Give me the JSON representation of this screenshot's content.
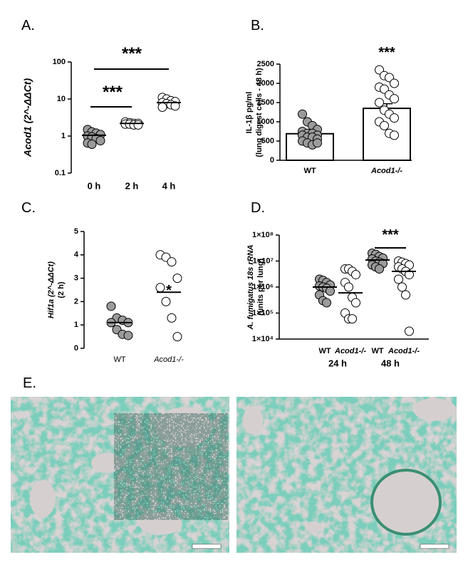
{
  "chart_data": [
    {
      "type": "strip",
      "panel_label": "A.",
      "ylabel": [
        "Acod1 (2^-ΔΔCt)"
      ],
      "log_y": true,
      "ylim": [
        0.1,
        100
      ],
      "yticks": [
        0.1,
        1,
        10,
        100
      ],
      "categories": [
        "0 h",
        "2 h",
        "4 h"
      ],
      "colors": [
        "#9b9b9b",
        "#ffffff",
        "#ffffff"
      ],
      "points": [
        [
          1.5,
          1.3,
          1.2,
          1.1,
          1.0,
          0.95,
          0.85,
          0.75,
          0.65,
          0.6
        ],
        [
          2.4,
          2.3,
          2.2,
          2.2,
          2.1,
          2.1,
          2.0,
          2.0
        ],
        [
          11,
          10,
          9,
          8.5,
          8,
          7.5,
          7,
          6.5,
          6
        ]
      ],
      "values": [
        1.05,
        2.2,
        8
      ],
      "annotations": [
        "***",
        "***"
      ]
    },
    {
      "type": "bar",
      "panel_label": "B.",
      "ylabel": [
        "IL-1β pg/ml",
        "(lung digest cells - 48 h)"
      ],
      "log_y": false,
      "ylim": [
        0,
        2500
      ],
      "yticks": [
        0,
        500,
        1000,
        1500,
        2000,
        2500
      ],
      "categories": [
        "WT",
        "Acod1-/-"
      ],
      "colors": [
        "#9b9b9b",
        "#ffffff"
      ],
      "bar_color": "#ffffff",
      "values": [
        690,
        1350
      ],
      "errors": [
        50,
        120
      ],
      "points": [
        [
          1200,
          1000,
          900,
          800,
          750,
          700,
          700,
          650,
          650,
          600,
          600,
          550,
          500,
          450,
          400,
          450
        ],
        [
          2350,
          2200,
          2150,
          2000,
          1900,
          1850,
          1700,
          1600,
          1500,
          1300,
          1200,
          1100,
          1000,
          900,
          700,
          650
        ]
      ],
      "annotations": [
        "***"
      ]
    },
    {
      "type": "strip",
      "panel_label": "C.",
      "ylabel": [
        "Hif1a (2^-ΔΔCt)",
        "(2 h)"
      ],
      "log_y": false,
      "ylim": [
        0,
        5
      ],
      "yticks": [
        0,
        1,
        2,
        3,
        4,
        5
      ],
      "categories": [
        "WT",
        "Acod1-/-"
      ],
      "colors": [
        "#9b9b9b",
        "#ffffff"
      ],
      "points": [
        [
          1.8,
          1.3,
          1.2,
          1.1,
          1.1,
          0.8,
          0.6,
          0.55
        ],
        [
          4.0,
          3.9,
          3.7,
          3.0,
          2.6,
          2.0,
          1.3,
          0.5
        ]
      ],
      "values": [
        1.1,
        2.4
      ],
      "annotations": [
        "*"
      ]
    },
    {
      "type": "strip",
      "panel_label": "D.",
      "ylabel": [
        "A. fumigatus 18s rRNA",
        "(units per lung)"
      ],
      "log_y": true,
      "ylim": [
        10000,
        100000000
      ],
      "yticks": [
        {
          "value": 10000,
          "label": "1×10⁴"
        },
        {
          "value": 100000,
          "label": "1×10⁵"
        },
        {
          "value": 1000000,
          "label": "1×10⁶"
        },
        {
          "value": 10000000,
          "label": "1×10⁷"
        },
        {
          "value": 100000000,
          "label": "1×10⁸"
        }
      ],
      "categories": [
        "WT",
        "Acod1-/-",
        "WT",
        "Acod1-/-"
      ],
      "groups": [
        "24 h",
        "48 h"
      ],
      "colors": [
        "#9b9b9b",
        "#ffffff",
        "#9b9b9b",
        "#ffffff"
      ],
      "points": [
        [
          2000000,
          1800000,
          1500000,
          1200000,
          1100000,
          1000000,
          900000,
          700000,
          500000,
          300000,
          250000
        ],
        [
          5000000,
          5000000,
          4000000,
          3000000,
          1500000,
          1000000,
          400000,
          250000,
          100000,
          60000,
          60000
        ],
        [
          20000000,
          18000000,
          15000000,
          13000000,
          12000000,
          10000000,
          9000000,
          8000000,
          7000000,
          6000000,
          5000000
        ],
        [
          10000000,
          9000000,
          8000000,
          7000000,
          6000000,
          5000000,
          4000000,
          3000000,
          2000000,
          1000000,
          500000,
          20000
        ]
      ],
      "values": [
        1000000,
        600000,
        11000000,
        4000000
      ],
      "annotations": [
        "***"
      ]
    }
  ],
  "figure_e": {
    "label": "E."
  }
}
